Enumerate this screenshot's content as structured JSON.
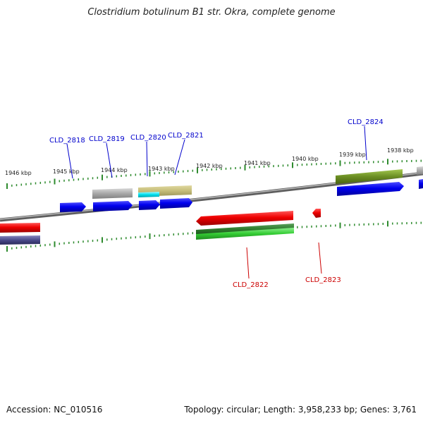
{
  "title": "Clostridium botulinum B1 str. Okra, complete genome",
  "footer": {
    "accession": "Accession: NC_010516",
    "summary": "Topology: circular; Length: 3,958,233 bp; Genes: 3,761"
  },
  "scale_labels": [
    "1946 kbp",
    "1945 kbp",
    "1944 kbp",
    "1943 kbp",
    "1942 kbp",
    "1941 kbp",
    "1940 kbp",
    "1939 kbp",
    "1938 kbp"
  ],
  "gene_labels": [
    {
      "text": "CLD_2818",
      "strand": "forward",
      "color": "#0000cc"
    },
    {
      "text": "CLD_2819",
      "strand": "forward",
      "color": "#0000cc"
    },
    {
      "text": "CLD_2820",
      "strand": "forward",
      "color": "#0000cc"
    },
    {
      "text": "CLD_2821",
      "strand": "forward",
      "color": "#0000cc"
    },
    {
      "text": "CLD_2824",
      "strand": "forward",
      "color": "#0000cc"
    },
    {
      "text": "CLD_2822",
      "strand": "reverse",
      "color": "#cc0000"
    },
    {
      "text": "CLD_2823",
      "strand": "reverse",
      "color": "#cc0000"
    }
  ],
  "colors": {
    "backbone": "#8a8a8a",
    "forward_gene": "#0000ee",
    "reverse_gene": "#ee0000",
    "tick": "#2e8b2e",
    "olive": "#6b8e23",
    "khaki": "#c8c080",
    "gray_feature": "#b0b0b0",
    "cyan_feature": "#00e5ee",
    "slate_feature": "#4a4a8a",
    "green_feature": "#2eb82e"
  }
}
